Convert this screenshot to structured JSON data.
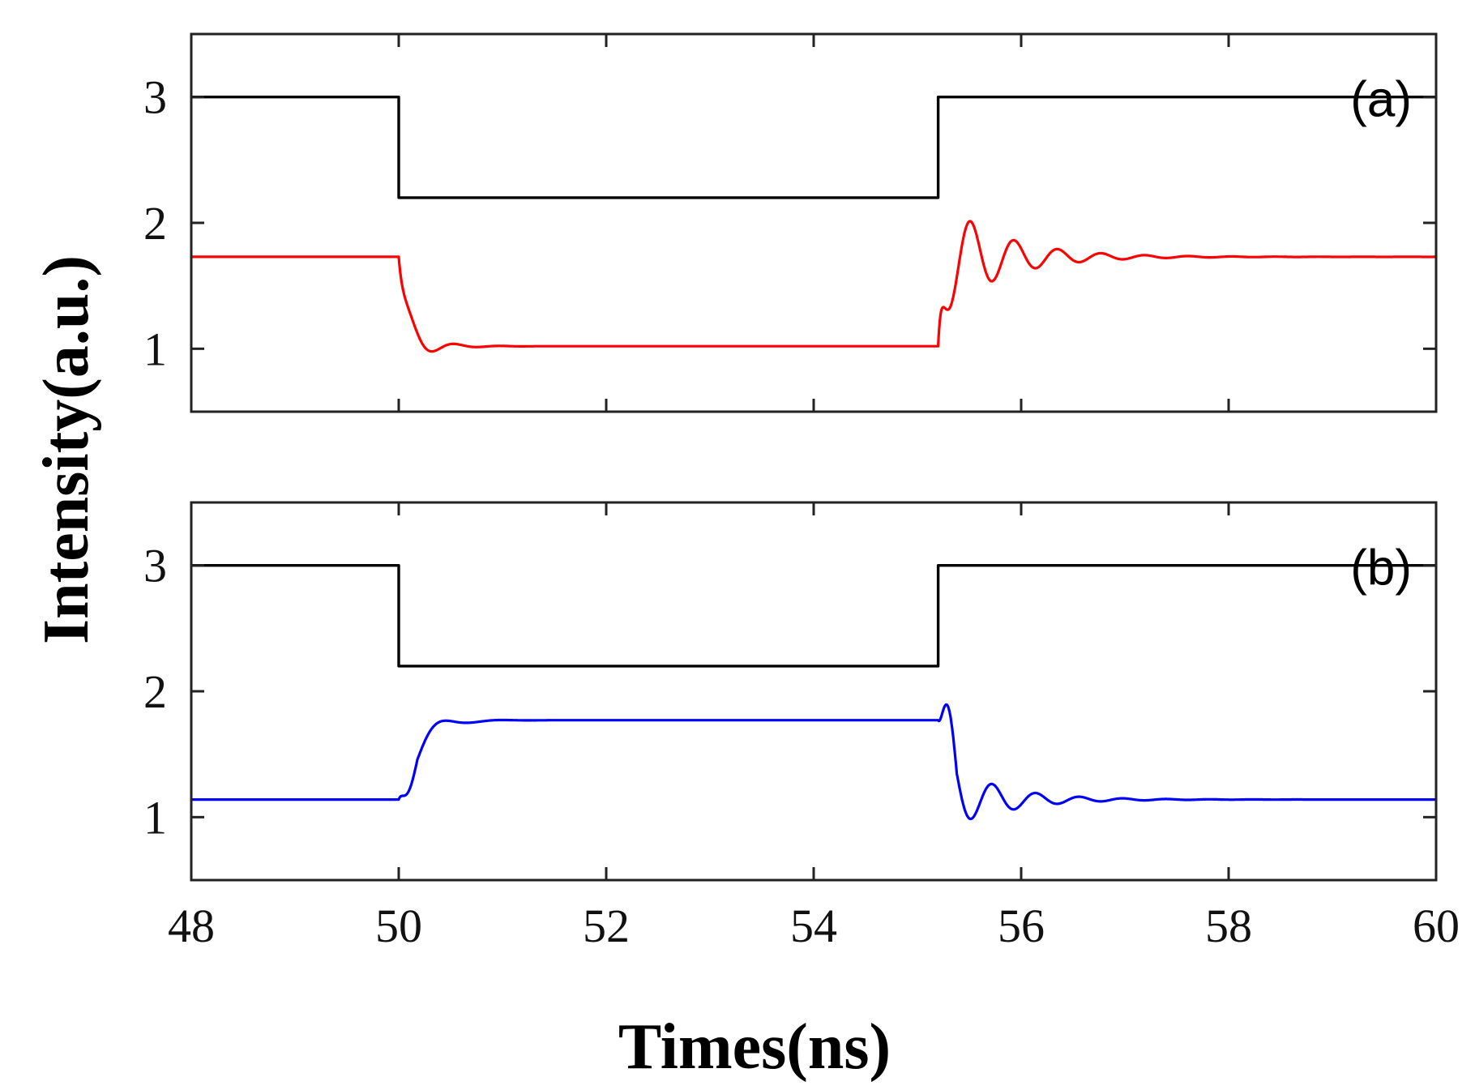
{
  "figure": {
    "xlabel": "Times(ns)",
    "ylabel": "Intensity(a.u.)"
  },
  "chart_data": [
    {
      "type": "line",
      "panel_label": "(a)",
      "xlim": [
        48,
        60
      ],
      "ylim": [
        0.5,
        3.5
      ],
      "x_ticks": [
        48,
        50,
        52,
        54,
        56,
        58,
        60
      ],
      "y_ticks": [
        1,
        2,
        3
      ],
      "grid": false,
      "series": [
        {
          "color": "#000000",
          "kind": "step",
          "points": [
            [
              48,
              3
            ],
            [
              50,
              3
            ],
            [
              50,
              2.2
            ],
            [
              55.2,
              2.2
            ],
            [
              55.2,
              3
            ],
            [
              60,
              3
            ]
          ]
        },
        {
          "color": "#ff0000",
          "kind": "damped",
          "base": 1.73,
          "transitions": [
            {
              "t": 50.0,
              "to": 1.02,
              "amp": 0.21,
              "period": 0.44,
              "tau": 0.22,
              "rise": 0.07
            },
            {
              "t": 55.2,
              "to": 1.73,
              "amp": 0.5,
              "period": 0.42,
              "tau": 0.55,
              "rise": 0.04
            }
          ]
        }
      ]
    },
    {
      "type": "line",
      "panel_label": "(b)",
      "xlim": [
        48,
        60
      ],
      "ylim": [
        0.5,
        3.5
      ],
      "x_ticks": [
        48,
        50,
        52,
        54,
        56,
        58,
        60
      ],
      "y_ticks": [
        1,
        2,
        3
      ],
      "grid": false,
      "series": [
        {
          "color": "#000000",
          "kind": "step",
          "points": [
            [
              48,
              3
            ],
            [
              50,
              3
            ],
            [
              50,
              2.2
            ],
            [
              55.2,
              2.2
            ],
            [
              55.2,
              3
            ],
            [
              60,
              3
            ]
          ]
        },
        {
          "color": "#0000ff",
          "kind": "damped",
          "base": 1.14,
          "transitions": [
            {
              "t": 50.0,
              "to": 1.77,
              "amp": 0.27,
              "period": 0.58,
              "tau": 0.22,
              "rise": 0.16,
              "pre_dip": 0.09
            },
            {
              "t": 55.2,
              "to": 1.14,
              "amp": 0.34,
              "period": 0.42,
              "tau": 0.5,
              "rise": 0.1,
              "pre_dip": -0.26
            }
          ]
        }
      ]
    }
  ]
}
